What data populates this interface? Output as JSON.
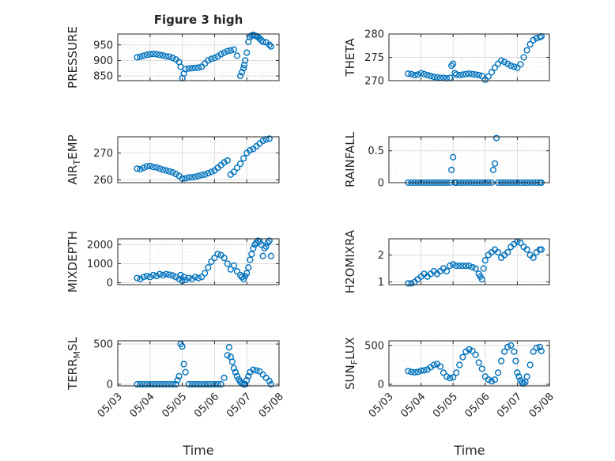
{
  "title": "Figure 3 high",
  "xlabel": "Time",
  "colors": {
    "marker": "#0072BD",
    "axis": "#262626",
    "grid": "#d9d9d9",
    "minor_grid": "#ececec"
  },
  "x_ticks": [
    "05/03",
    "05/04",
    "05/05",
    "05/06",
    "05/07",
    "05/08"
  ],
  "chart_data": [
    {
      "id": "pressure",
      "type": "scatter",
      "ylabel_main": "PRESSURE",
      "ylabel_sub": "",
      "ylim": [
        835,
        985
      ],
      "yticks": [
        850,
        900,
        950
      ],
      "x_range_days": [
        0,
        5
      ],
      "series": [
        {
          "x": [
            0.6,
            0.7,
            0.8,
            0.9,
            1.0,
            1.1,
            1.2,
            1.3,
            1.4,
            1.5,
            1.6,
            1.7,
            1.8,
            1.9,
            1.95,
            2.0,
            2.05,
            2.1,
            2.2,
            2.3,
            2.4,
            2.5,
            2.6,
            2.7,
            2.8,
            2.9,
            3.0,
            3.1,
            3.2,
            3.3,
            3.4,
            3.5,
            3.6,
            3.7,
            3.8,
            3.85,
            3.9,
            3.92,
            3.95,
            4.0,
            4.05,
            4.1,
            4.15,
            4.2,
            4.25,
            4.3,
            4.35,
            4.4,
            4.45,
            4.5,
            4.6,
            4.7,
            4.75
          ],
          "y": [
            910,
            912,
            915,
            918,
            920,
            921,
            920,
            918,
            916,
            913,
            912,
            908,
            903,
            895,
            880,
            843,
            858,
            872,
            874,
            875,
            876,
            877,
            880,
            890,
            900,
            905,
            908,
            913,
            920,
            925,
            930,
            932,
            935,
            915,
            850,
            862,
            875,
            885,
            900,
            925,
            960,
            975,
            980,
            982,
            980,
            978,
            975,
            970,
            965,
            960,
            958,
            950,
            945
          ]
        }
      ]
    },
    {
      "id": "theta",
      "type": "scatter",
      "ylabel_main": "THETA",
      "ylabel_sub": "",
      "ylim": [
        270,
        280
      ],
      "yticks": [
        270,
        275,
        280
      ],
      "x_range_days": [
        0,
        5
      ],
      "series": [
        {
          "x": [
            0.6,
            0.7,
            0.8,
            0.9,
            1.0,
            1.1,
            1.2,
            1.3,
            1.4,
            1.5,
            1.6,
            1.7,
            1.8,
            1.9,
            1.95,
            2.0,
            2.05,
            2.1,
            2.2,
            2.3,
            2.4,
            2.5,
            2.6,
            2.7,
            2.8,
            2.9,
            3.0,
            3.1,
            3.2,
            3.3,
            3.4,
            3.5,
            3.6,
            3.7,
            3.8,
            3.9,
            4.0,
            4.1,
            4.2,
            4.3,
            4.4,
            4.5,
            4.6,
            4.7,
            4.75
          ],
          "y": [
            271.5,
            271.4,
            271.2,
            271.3,
            271.6,
            271.4,
            271.2,
            271.0,
            270.8,
            270.7,
            270.6,
            270.6,
            270.5,
            270.6,
            273.2,
            273.6,
            271.6,
            271.3,
            271.2,
            271.3,
            271.4,
            271.5,
            271.4,
            271.3,
            271.2,
            271.0,
            270.2,
            270.9,
            271.8,
            272.8,
            273.6,
            274.3,
            274.0,
            273.6,
            273.2,
            273.0,
            272.8,
            273.5,
            275.0,
            276.5,
            277.8,
            278.7,
            279.1,
            279.3,
            279.5
          ]
        }
      ]
    },
    {
      "id": "air_temp",
      "type": "scatter",
      "ylabel_main": "AIR",
      "ylabel_sub": "T",
      "ylabel_tail": "EMP",
      "ylim": [
        259,
        276
      ],
      "yticks": [
        260,
        270
      ],
      "x_range_days": [
        0,
        5
      ],
      "series": [
        {
          "x": [
            0.6,
            0.7,
            0.8,
            0.9,
            1.0,
            1.1,
            1.2,
            1.3,
            1.4,
            1.5,
            1.6,
            1.7,
            1.8,
            1.9,
            2.0,
            2.1,
            2.2,
            2.3,
            2.4,
            2.5,
            2.6,
            2.7,
            2.8,
            2.9,
            3.0,
            3.1,
            3.2,
            3.3,
            3.4,
            3.5,
            3.6,
            3.7,
            3.8,
            3.9,
            4.0,
            4.1,
            4.2,
            4.3,
            4.4,
            4.5,
            4.6,
            4.7
          ],
          "y": [
            264.2,
            264.0,
            264.5,
            265.0,
            265.2,
            264.8,
            264.6,
            264.2,
            263.8,
            263.5,
            263.2,
            262.8,
            262.2,
            261.5,
            260.5,
            260.6,
            260.9,
            261.0,
            261.2,
            261.5,
            261.8,
            262.0,
            262.5,
            263.0,
            263.5,
            264.5,
            265.5,
            266.5,
            267.2,
            262.0,
            263.0,
            264.5,
            266.0,
            268.0,
            270.0,
            271.0,
            271.5,
            272.5,
            273.5,
            274.5,
            275.0,
            275.3
          ]
        }
      ]
    },
    {
      "id": "rainfall",
      "type": "scatter",
      "ylabel_main": "RAINFALL",
      "ylabel_sub": "",
      "ylim": [
        0,
        0.72
      ],
      "yticks": [
        0,
        0.5
      ],
      "ytick_labels": [
        "0",
        "0.5"
      ],
      "x_range_days": [
        0,
        5
      ],
      "series": [
        {
          "x": [
            0.6,
            0.7,
            0.8,
            0.9,
            1.0,
            1.1,
            1.2,
            1.3,
            1.4,
            1.5,
            1.6,
            1.7,
            1.8,
            1.9,
            1.95,
            2.0,
            2.05,
            2.1,
            2.2,
            2.3,
            2.4,
            2.5,
            2.6,
            2.7,
            2.8,
            2.9,
            3.0,
            3.1,
            3.2,
            3.25,
            3.3,
            3.35,
            3.4,
            3.5,
            3.6,
            3.7,
            3.8,
            3.9,
            4.0,
            4.1,
            4.2,
            4.3,
            4.4,
            4.5,
            4.6,
            4.7,
            4.75
          ],
          "y": [
            0,
            0,
            0,
            0,
            0,
            0,
            0,
            0,
            0,
            0,
            0,
            0,
            0,
            0,
            0.2,
            0.4,
            0,
            0,
            0,
            0,
            0,
            0,
            0,
            0,
            0,
            0,
            0,
            0,
            0,
            0.2,
            0.3,
            0.7,
            0,
            0,
            0,
            0,
            0,
            0,
            0,
            0,
            0,
            0,
            0,
            0,
            0,
            0,
            0
          ]
        }
      ]
    },
    {
      "id": "mixdepth",
      "type": "scatter",
      "ylabel_main": "MIXDEPTH",
      "ylabel_sub": "",
      "ylim": [
        -100,
        2300
      ],
      "yticks": [
        0,
        1000,
        2000
      ],
      "x_range_days": [
        0,
        5
      ],
      "series": [
        {
          "x": [
            0.6,
            0.7,
            0.8,
            0.9,
            1.0,
            1.1,
            1.2,
            1.3,
            1.4,
            1.5,
            1.6,
            1.7,
            1.8,
            1.9,
            1.95,
            2.0,
            2.05,
            2.1,
            2.2,
            2.3,
            2.4,
            2.5,
            2.6,
            2.7,
            2.8,
            2.9,
            3.0,
            3.1,
            3.2,
            3.3,
            3.4,
            3.5,
            3.6,
            3.7,
            3.8,
            3.85,
            3.9,
            3.95,
            4.0,
            4.05,
            4.1,
            4.15,
            4.2,
            4.25,
            4.3,
            4.35,
            4.4,
            4.45,
            4.5,
            4.55,
            4.6,
            4.65,
            4.7,
            4.75
          ],
          "y": [
            250,
            200,
            300,
            350,
            300,
            400,
            350,
            450,
            400,
            450,
            420,
            380,
            300,
            200,
            400,
            100,
            300,
            150,
            250,
            200,
            300,
            250,
            300,
            500,
            800,
            1100,
            1300,
            1500,
            1450,
            1300,
            1000,
            700,
            900,
            600,
            400,
            300,
            200,
            350,
            500,
            800,
            1200,
            1500,
            1800,
            2000,
            2100,
            2200,
            2150,
            2000,
            1400,
            1800,
            1900,
            2100,
            2200,
            1400
          ]
        }
      ]
    },
    {
      "id": "h2omixra",
      "type": "scatter",
      "ylabel_main": "H2OMIXRA",
      "ylabel_sub": "",
      "ylim": [
        0.9,
        2.6
      ],
      "yticks": [
        1,
        2
      ],
      "x_range_days": [
        0,
        5
      ],
      "series": [
        {
          "x": [
            0.6,
            0.7,
            0.8,
            0.9,
            1.0,
            1.1,
            1.2,
            1.3,
            1.4,
            1.5,
            1.6,
            1.7,
            1.8,
            1.9,
            2.0,
            2.1,
            2.2,
            2.3,
            2.4,
            2.5,
            2.6,
            2.7,
            2.8,
            2.85,
            2.9,
            2.95,
            3.0,
            3.1,
            3.2,
            3.3,
            3.4,
            3.5,
            3.6,
            3.7,
            3.8,
            3.9,
            4.0,
            4.1,
            4.2,
            4.3,
            4.4,
            4.5,
            4.6,
            4.7,
            4.75
          ],
          "y": [
            0.95,
            0.95,
            1.0,
            1.1,
            1.2,
            1.3,
            1.2,
            1.3,
            1.4,
            1.3,
            1.4,
            1.5,
            1.4,
            1.6,
            1.65,
            1.6,
            1.6,
            1.6,
            1.6,
            1.6,
            1.55,
            1.5,
            1.3,
            1.2,
            1.1,
            1.5,
            1.8,
            2.0,
            2.1,
            2.2,
            2.1,
            1.9,
            2.0,
            2.1,
            2.3,
            2.4,
            2.5,
            2.45,
            2.3,
            2.2,
            2.0,
            1.9,
            2.1,
            2.2,
            2.2
          ]
        }
      ]
    },
    {
      "id": "terr_msl",
      "type": "scatter",
      "ylabel_main": "TERR",
      "ylabel_sub": "M",
      "ylabel_tail": "SL",
      "ylim": [
        -20,
        540
      ],
      "yticks": [
        0,
        500
      ],
      "x_range_days": [
        0,
        5
      ],
      "series": [
        {
          "x": [
            0.6,
            0.7,
            0.8,
            0.9,
            1.0,
            1.1,
            1.2,
            1.3,
            1.4,
            1.5,
            1.6,
            1.7,
            1.8,
            1.85,
            1.9,
            1.95,
            2.0,
            2.05,
            2.1,
            2.2,
            2.3,
            2.4,
            2.5,
            2.6,
            2.7,
            2.8,
            2.9,
            3.0,
            3.1,
            3.2,
            3.3,
            3.4,
            3.45,
            3.5,
            3.55,
            3.6,
            3.65,
            3.7,
            3.75,
            3.8,
            3.85,
            3.9,
            3.95,
            4.0,
            4.05,
            4.1,
            4.2,
            4.3,
            4.4,
            4.5,
            4.6,
            4.7,
            4.75
          ],
          "y": [
            0,
            0,
            0,
            0,
            0,
            0,
            0,
            0,
            0,
            0,
            0,
            0,
            0,
            50,
            100,
            500,
            470,
            250,
            150,
            0,
            0,
            0,
            0,
            0,
            0,
            0,
            0,
            0,
            0,
            0,
            80,
            360,
            460,
            340,
            280,
            200,
            150,
            100,
            60,
            30,
            10,
            0,
            0,
            50,
            100,
            150,
            180,
            170,
            160,
            120,
            80,
            40,
            0
          ]
        }
      ]
    },
    {
      "id": "sun_flux",
      "type": "scatter",
      "ylabel_main": "SUN",
      "ylabel_sub": "F",
      "ylabel_tail": "LUX",
      "ylim": [
        -20,
        560
      ],
      "yticks": [
        0,
        500
      ],
      "x_range_days": [
        0,
        5
      ],
      "series": [
        {
          "x": [
            0.6,
            0.7,
            0.8,
            0.9,
            1.0,
            1.1,
            1.2,
            1.3,
            1.4,
            1.5,
            1.6,
            1.7,
            1.8,
            1.9,
            2.0,
            2.1,
            2.2,
            2.3,
            2.4,
            2.5,
            2.6,
            2.7,
            2.8,
            2.9,
            3.0,
            3.1,
            3.2,
            3.3,
            3.4,
            3.5,
            3.6,
            3.7,
            3.8,
            3.9,
            3.95,
            4.0,
            4.05,
            4.1,
            4.15,
            4.2,
            4.25,
            4.3,
            4.4,
            4.5,
            4.6,
            4.7,
            4.75
          ],
          "y": [
            170,
            160,
            155,
            160,
            175,
            180,
            190,
            220,
            250,
            260,
            230,
            150,
            100,
            80,
            90,
            150,
            250,
            350,
            420,
            450,
            430,
            380,
            280,
            200,
            100,
            60,
            40,
            60,
            150,
            300,
            420,
            480,
            500,
            420,
            300,
            150,
            100,
            50,
            20,
            10,
            30,
            100,
            250,
            420,
            470,
            480,
            430
          ]
        }
      ]
    }
  ]
}
